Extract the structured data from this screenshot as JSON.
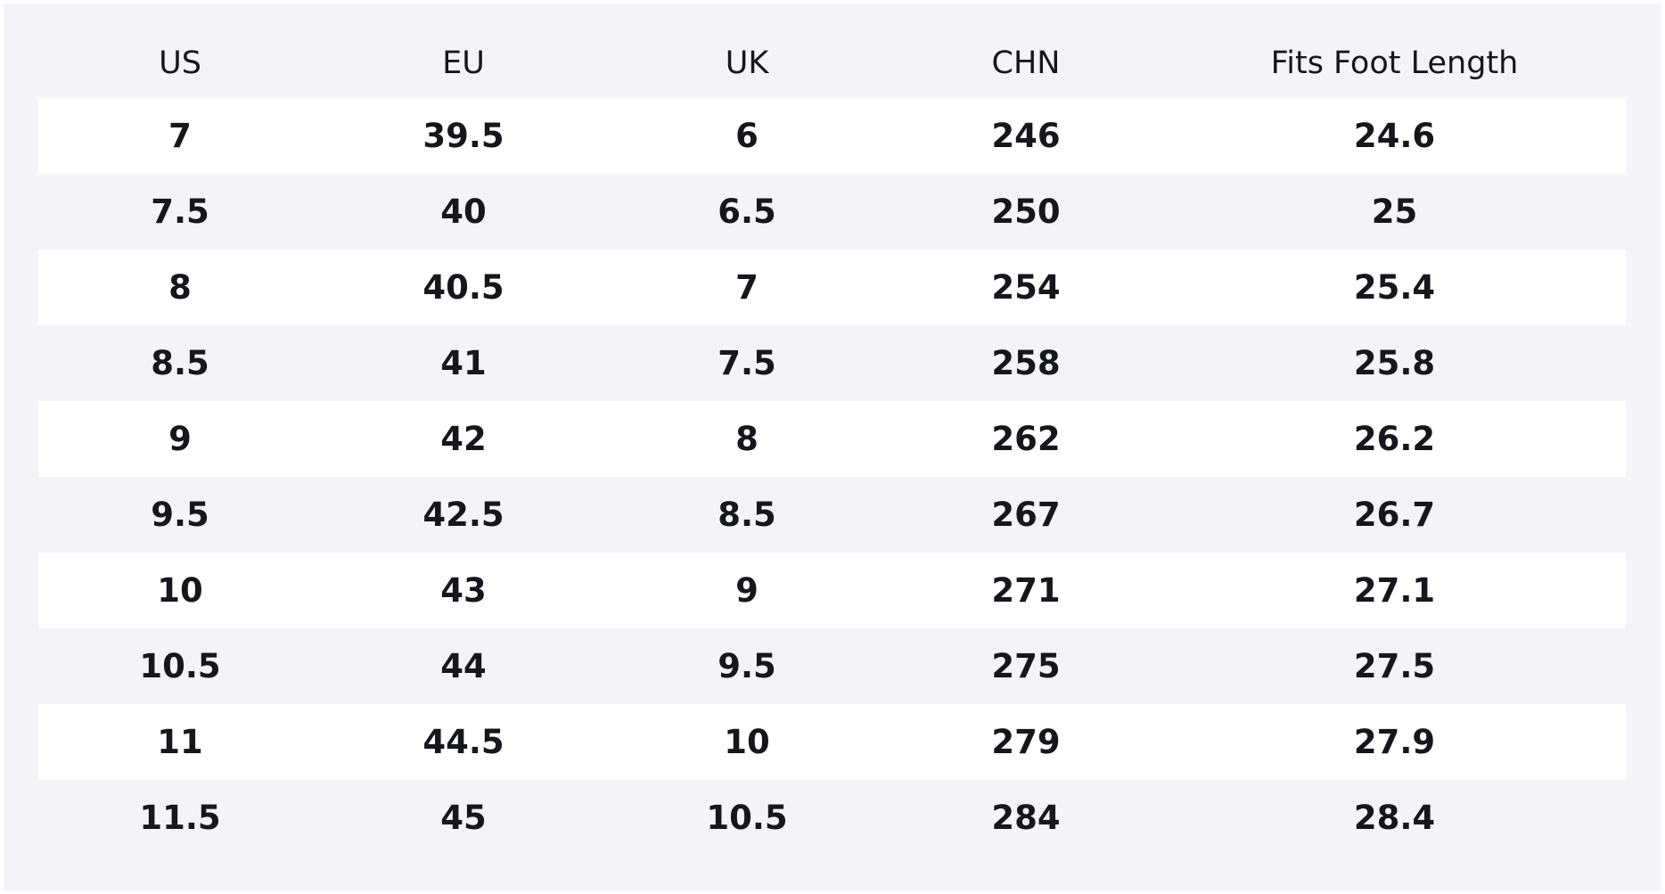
{
  "table": {
    "header": [
      "US",
      "EU",
      "UK",
      "CHN",
      "Fits Foot Length"
    ],
    "rows": [
      [
        "7",
        "39.5",
        "6",
        "246",
        "24.6"
      ],
      [
        "7.5",
        "40",
        "6.5",
        "250",
        "25"
      ],
      [
        "8",
        "40.5",
        "7",
        "254",
        "25.4"
      ],
      [
        "8.5",
        "41",
        "7.5",
        "258",
        "25.8"
      ],
      [
        "9",
        "42",
        "8",
        "262",
        "26.2"
      ],
      [
        "9.5",
        "42.5",
        "8.5",
        "267",
        "26.7"
      ],
      [
        "10",
        "43",
        "9",
        "271",
        "27.1"
      ],
      [
        "10.5",
        "44",
        "9.5",
        "275",
        "27.5"
      ],
      [
        "11",
        "44.5",
        "10",
        "279",
        "27.9"
      ],
      [
        "11.5",
        "45",
        "10.5",
        "284",
        "28.4"
      ]
    ]
  }
}
